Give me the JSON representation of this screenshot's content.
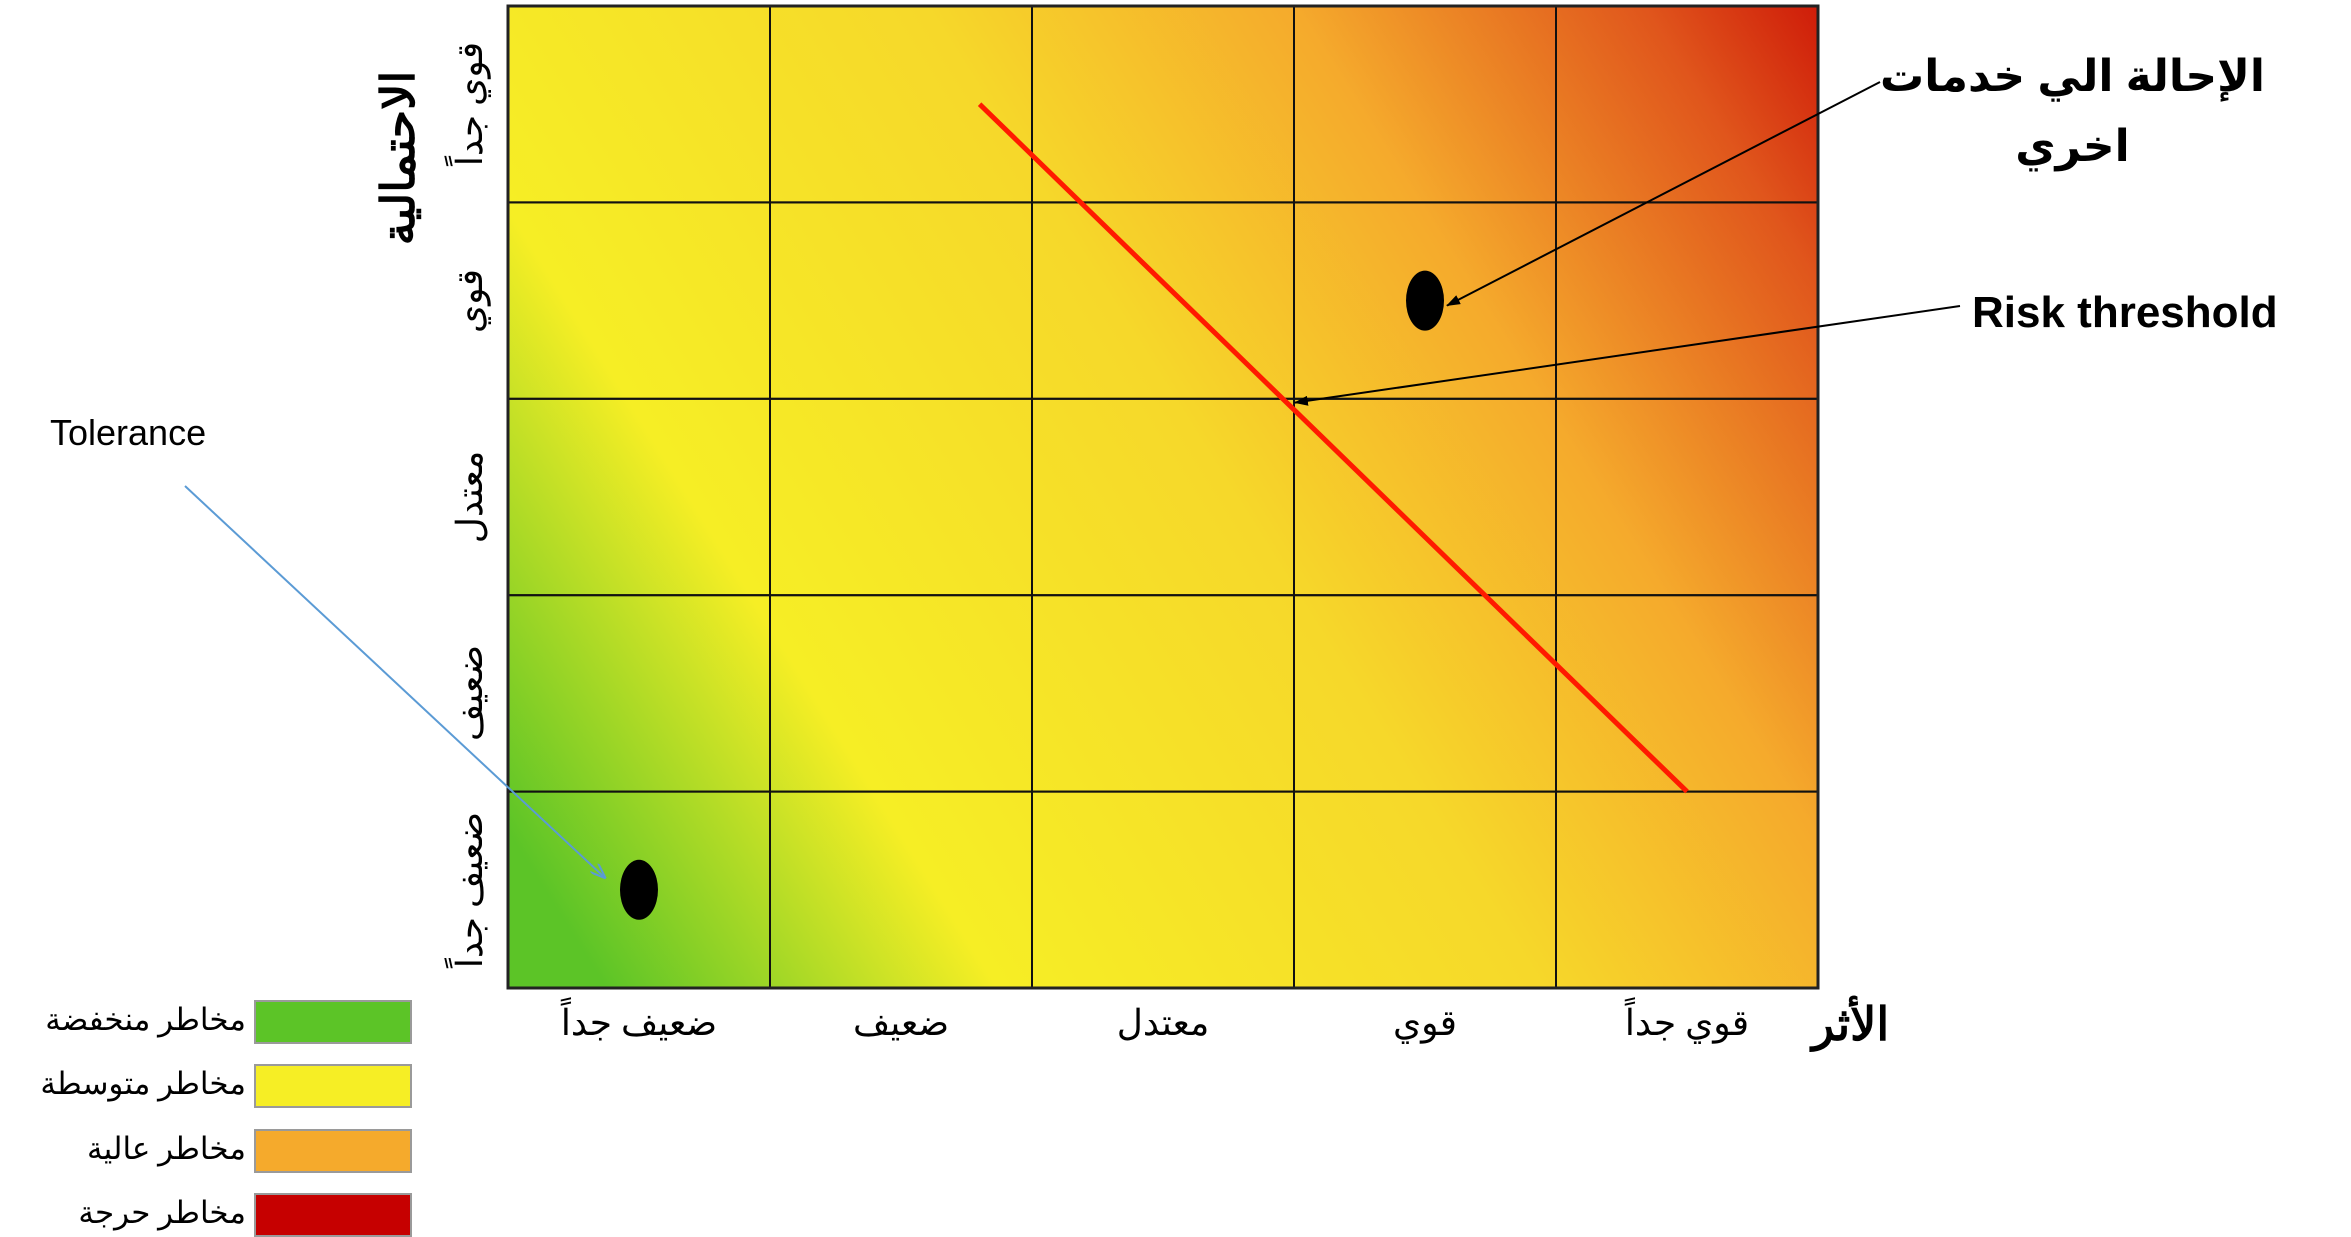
{
  "chart_data": {
    "type": "heatmap",
    "x_axis": {
      "title": "الأثر",
      "categories": [
        "ضعيف جداً",
        "ضعيف",
        "معتدل",
        "قوي",
        "قوي جداً"
      ]
    },
    "y_axis": {
      "title": "الاحتمالية",
      "categories": [
        "ضعيف جداً",
        "ضعيف",
        "معتدل",
        "قوي",
        "قوي جداً"
      ]
    },
    "points": [
      {
        "x": 1,
        "y": 1,
        "label": "Tolerance"
      },
      {
        "x": 4,
        "y": 4,
        "label": "الإحالة الي خدمات اخري"
      }
    ],
    "threshold_line": {
      "label": "Risk threshold",
      "from": {
        "x": 2.3,
        "y": 5.0
      },
      "to": {
        "x": 5.0,
        "y": 1.5
      }
    },
    "annotations": {
      "referral_line1": "الإحالة الي خدمات",
      "referral_line2": "اخري",
      "risk_threshold": "Risk threshold",
      "tolerance": "Tolerance"
    },
    "legend": [
      {
        "label": "مخاطر منخفضة",
        "color": "#5cc427"
      },
      {
        "label": "مخاطر متوسطة",
        "color": "#f6ee25"
      },
      {
        "label": "مخاطر عالية",
        "color": "#f5aa2c"
      },
      {
        "label": "مخاطر حرجة",
        "color": "#c60000"
      }
    ],
    "grid": true,
    "colors": {
      "low": "#5cc427",
      "medium": "#f6ee25",
      "high": "#f5aa2c",
      "critical": "#c60000",
      "threshold_line": "#ff1a00",
      "tolerance_arrow": "#5b9bd5",
      "marker": "#000000"
    }
  }
}
